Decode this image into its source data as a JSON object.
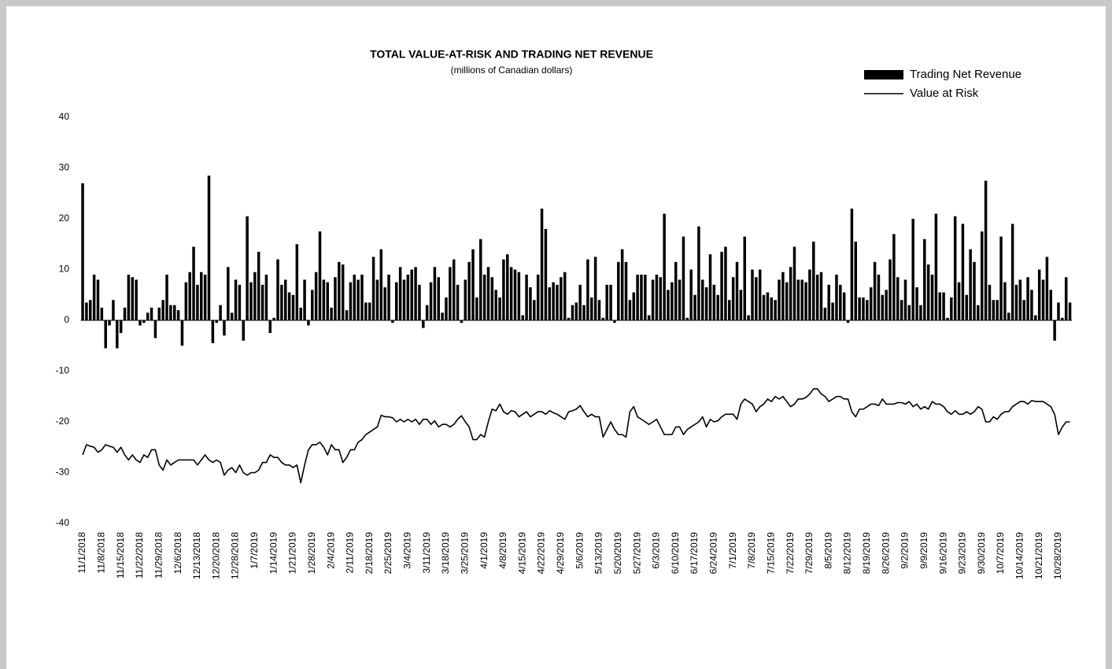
{
  "chart_data": {
    "type": "bar",
    "title": "TOTAL VALUE-AT-RISK AND TRADING NET REVENUE",
    "subtitle": "(millions of Canadian dollars)",
    "legend": "top-right",
    "grid": false,
    "ylim": [
      -40,
      40
    ],
    "yticks": [
      40,
      30,
      20,
      10,
      0,
      -10,
      -20,
      -30,
      -40
    ],
    "categories": [
      "11/1/2018",
      null,
      null,
      null,
      null,
      "11/8/2018",
      null,
      null,
      null,
      null,
      "11/15/2018",
      null,
      null,
      null,
      null,
      "11/22/2018",
      null,
      null,
      null,
      null,
      "11/29/2018",
      null,
      null,
      null,
      null,
      "12/6/2018",
      null,
      null,
      null,
      null,
      "12/13/2018",
      null,
      null,
      null,
      null,
      "12/20/2018",
      null,
      null,
      null,
      null,
      "12/28/2018",
      null,
      null,
      null,
      null,
      "1/7/2019",
      null,
      null,
      null,
      null,
      "1/14/2019",
      null,
      null,
      null,
      null,
      "1/21/2019",
      null,
      null,
      null,
      null,
      "1/28/2019",
      null,
      null,
      null,
      null,
      "2/4/2019",
      null,
      null,
      null,
      null,
      "2/11/2019",
      null,
      null,
      null,
      null,
      "2/18/2019",
      null,
      null,
      null,
      null,
      "2/25/2019",
      null,
      null,
      null,
      null,
      "3/4/2019",
      null,
      null,
      null,
      null,
      "3/11/2019",
      null,
      null,
      null,
      null,
      "3/18/2019",
      null,
      null,
      null,
      null,
      "3/25/2019",
      null,
      null,
      null,
      null,
      "4/1/2019",
      null,
      null,
      null,
      null,
      "4/8/2019",
      null,
      null,
      null,
      null,
      "4/15/2019",
      null,
      null,
      null,
      null,
      "4/22/2019",
      null,
      null,
      null,
      null,
      "4/29/2019",
      null,
      null,
      null,
      null,
      "5/6/2019",
      null,
      null,
      null,
      null,
      "5/13/2019",
      null,
      null,
      null,
      null,
      "5/20/2019",
      null,
      null,
      null,
      null,
      "5/27/2019",
      null,
      null,
      null,
      null,
      "6/3/2019",
      null,
      null,
      null,
      null,
      "6/10/2019",
      null,
      null,
      null,
      null,
      "6/17/2019",
      null,
      null,
      null,
      null,
      "6/24/2019",
      null,
      null,
      null,
      null,
      "7/1/2019",
      null,
      null,
      null,
      null,
      "7/8/2019",
      null,
      null,
      null,
      null,
      "7/15/2019",
      null,
      null,
      null,
      null,
      "7/22/2019",
      null,
      null,
      null,
      null,
      "7/29/2019",
      null,
      null,
      null,
      null,
      "8/5/2019",
      null,
      null,
      null,
      null,
      "8/12/2019",
      null,
      null,
      null,
      null,
      "8/19/2019",
      null,
      null,
      null,
      null,
      "8/26/2019",
      null,
      null,
      null,
      null,
      "9/2/2019",
      null,
      null,
      null,
      null,
      "9/9/2019",
      null,
      null,
      null,
      null,
      "9/16/2019",
      null,
      null,
      null,
      null,
      "9/23/2019",
      null,
      null,
      null,
      null,
      "9/30/2019",
      null,
      null,
      null,
      null,
      "10/7/2019",
      null,
      null,
      null,
      null,
      "10/14/2019",
      null,
      null,
      null,
      null,
      "10/21/2019",
      null,
      null,
      null,
      null,
      "10/28/2019",
      null,
      null,
      null
    ],
    "series": [
      {
        "name": "Trading Net Revenue",
        "type": "bar",
        "color": "#000000",
        "values": [
          27,
          3.5,
          4,
          9,
          8,
          2.5,
          -5.5,
          -1,
          4,
          -5.5,
          -2.5,
          2.5,
          9,
          8.5,
          8,
          -1,
          -0.5,
          1.5,
          2.5,
          -3.5,
          2.5,
          4,
          9,
          3,
          3,
          2,
          -5,
          7.5,
          9.5,
          14.5,
          7,
          9.5,
          9,
          28.5,
          -4.5,
          -0.5,
          3,
          -3,
          10.5,
          1.5,
          8,
          7,
          -4,
          20.5,
          7.5,
          9.5,
          13.5,
          7,
          9,
          -2.5,
          0.5,
          12,
          7,
          8,
          5.5,
          5,
          15,
          2.5,
          8,
          -1,
          6,
          9.5,
          17.5,
          8,
          7.5,
          2.5,
          8.5,
          11.5,
          11,
          2,
          7.5,
          9,
          8,
          9,
          3.5,
          3.5,
          12.5,
          8,
          14,
          6.5,
          9,
          -0.5,
          7.5,
          10.5,
          8,
          9,
          10,
          10.5,
          7,
          -1.5,
          3,
          7.5,
          10.5,
          8.5,
          1.5,
          4.5,
          10.5,
          12,
          7,
          -0.5,
          8,
          11.5,
          14,
          4.5,
          16,
          9,
          10.5,
          8.5,
          6,
          4.5,
          12,
          13,
          10.5,
          10,
          9.5,
          1,
          9,
          6.5,
          4,
          9,
          22,
          18,
          6.5,
          7.5,
          7,
          8.5,
          9.5,
          0.5,
          3,
          3.5,
          7,
          3,
          12,
          4.5,
          12.5,
          4,
          0.5,
          7,
          7,
          -0.5,
          11.5,
          14,
          11.5,
          4,
          5.5,
          9,
          9,
          9,
          1,
          8,
          9,
          8.5,
          21,
          6,
          7.5,
          11.5,
          8,
          16.5,
          0.5,
          10,
          5,
          18.5,
          8,
          6.5,
          13,
          7,
          5,
          13.5,
          14.5,
          4,
          8.5,
          11.5,
          6,
          16.5,
          1,
          10,
          8.5,
          10,
          5,
          5.5,
          4.5,
          4,
          8,
          9.5,
          7.5,
          10.5,
          14.5,
          8,
          8,
          7.5,
          10,
          15.5,
          9,
          9.5,
          2.5,
          7,
          3.5,
          9,
          7,
          5.5,
          -0.5,
          22,
          15.5,
          4.5,
          4.5,
          4,
          6.5,
          11.5,
          9,
          5,
          6,
          12,
          17,
          8.5,
          4,
          8,
          3,
          20,
          6.5,
          3,
          16,
          11,
          9,
          21,
          5.5,
          5.5,
          0.5,
          4.5,
          20.5,
          7.5,
          19,
          5,
          14,
          11.5,
          3,
          17.5,
          27.5,
          7,
          4,
          4,
          16.5,
          7.5,
          1.5,
          19,
          7,
          8,
          4,
          8.5,
          6,
          1,
          10,
          8,
          12.5,
          6,
          -4,
          3.5,
          0.5,
          8.5,
          3.5
        ]
      },
      {
        "name": "Value at Risk",
        "type": "line",
        "color": "#000000",
        "values": [
          -26.5,
          -24.5,
          -24.8,
          -25,
          -26,
          -25.5,
          -24.5,
          -24.8,
          -25,
          -26,
          -25,
          -26.5,
          -27.5,
          -26.5,
          -27.5,
          -28,
          -26.5,
          -27,
          -25.5,
          -25.5,
          -28.5,
          -29.5,
          -27.5,
          -28.5,
          -28,
          -27.5,
          -27.5,
          -27.5,
          -27.5,
          -27.5,
          -28.5,
          -27.5,
          -26.5,
          -27.5,
          -28,
          -27.5,
          -28,
          -30.5,
          -29.5,
          -29,
          -30,
          -28.5,
          -30,
          -30.5,
          -30,
          -30,
          -29.5,
          -28,
          -28,
          -26.5,
          -27,
          -27,
          -28,
          -28.5,
          -28.5,
          -29,
          -28.5,
          -32,
          -28.5,
          -25.5,
          -24.5,
          -24.5,
          -24,
          -25,
          -26.5,
          -24.5,
          -25.5,
          -25.5,
          -28,
          -27,
          -25.5,
          -25.5,
          -24,
          -23.5,
          -22.5,
          -22,
          -21.5,
          -21,
          -18.7,
          -19,
          -19,
          -19.2,
          -20,
          -19.5,
          -20,
          -19.5,
          -20,
          -19.5,
          -20.5,
          -19.5,
          -19.5,
          -20.5,
          -19.8,
          -21,
          -20.5,
          -20.5,
          -21,
          -20.5,
          -19.5,
          -18.8,
          -20,
          -21,
          -23.5,
          -23.5,
          -22.5,
          -23,
          -20,
          -17.5,
          -17.8,
          -16.5,
          -18,
          -18.5,
          -17.8,
          -18,
          -19,
          -18.5,
          -18,
          -19,
          -18.5,
          -18,
          -18,
          -18.5,
          -17.8,
          -18.2,
          -18.5,
          -19,
          -19.5,
          -18,
          -17.8,
          -17.5,
          -16.8,
          -18,
          -19,
          -18.5,
          -19,
          -19,
          -23,
          -21.5,
          -20,
          -21.5,
          -22.5,
          -22.5,
          -23,
          -18,
          -17,
          -19,
          -19.5,
          -20,
          -20.5,
          -20,
          -19.5,
          -21,
          -22.5,
          -22.5,
          -22.5,
          -21,
          -21,
          -22.5,
          -21.5,
          -21,
          -20.5,
          -20,
          -19,
          -21,
          -19.5,
          -20,
          -19.8,
          -19,
          -18.5,
          -18.5,
          -18.5,
          -19.5,
          -16.5,
          -15.5,
          -16,
          -16.5,
          -18,
          -17,
          -16.5,
          -15.5,
          -16,
          -15,
          -15.5,
          -15,
          -16,
          -17,
          -16.5,
          -15.5,
          -15.5,
          -15.2,
          -14.5,
          -13.5,
          -13.5,
          -14.5,
          -15,
          -16,
          -15.5,
          -15,
          -15,
          -15.5,
          -15.5,
          -18,
          -19,
          -17.5,
          -17.5,
          -17,
          -16.5,
          -16.5,
          -16.8,
          -15.5,
          -16.5,
          -16.5,
          -16.5,
          -16.2,
          -16.2,
          -16.5,
          -16,
          -17,
          -16.5,
          -17.5,
          -17,
          -17.5,
          -16,
          -16.5,
          -16.5,
          -17,
          -18,
          -18.5,
          -17.8,
          -18.5,
          -18.5,
          -18,
          -18.5,
          -18,
          -17,
          -17.5,
          -20,
          -20,
          -19,
          -19.5,
          -18.5,
          -18,
          -18,
          -17,
          -16.5,
          -16,
          -16,
          -16.5,
          -15.8,
          -16,
          -16,
          -16,
          -16.5,
          -17,
          -18.5,
          -22.5,
          -21,
          -20,
          -20
        ]
      }
    ]
  }
}
